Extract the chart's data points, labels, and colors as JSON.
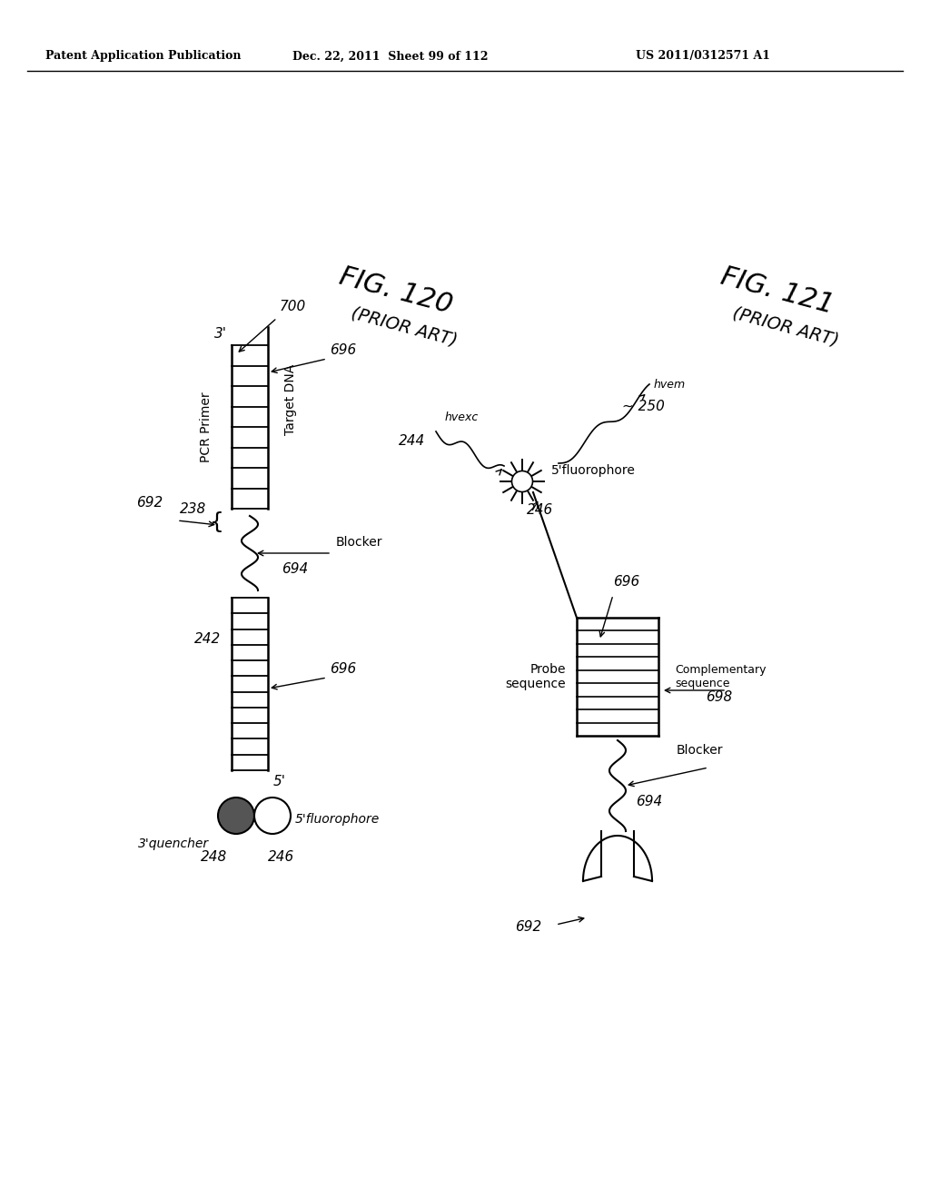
{
  "header_left": "Patent Application Publication",
  "header_mid": "Dec. 22, 2011  Sheet 99 of 112",
  "header_right": "US 2011/0312571 A1",
  "fig120_label": "FIG. 120",
  "fig120_sub": "(PRIOR ART)",
  "fig121_label": "FIG. 121",
  "fig121_sub": "(PRIOR ART)",
  "background": "#ffffff",
  "line_color": "#000000"
}
